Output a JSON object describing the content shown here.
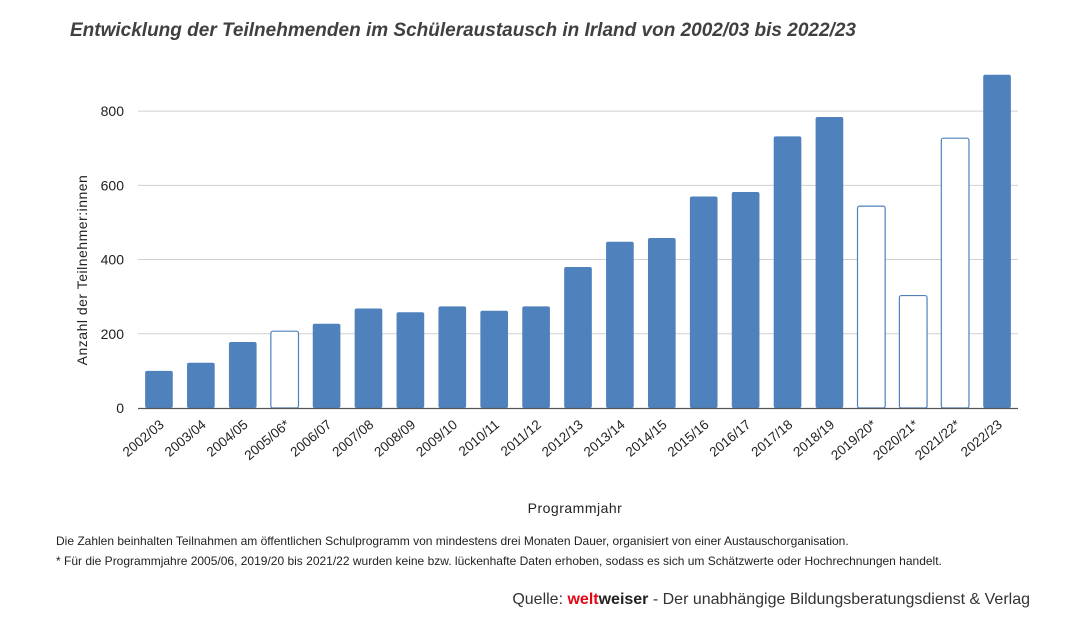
{
  "chart_data": {
    "type": "bar",
    "title": "Entwicklung der Teilnehmenden im Schüleraustausch in Irland von 2002/03 bis 2022/23",
    "xlabel": "Programmjahr",
    "ylabel": "Anzahl der Teilnehmer:innen",
    "ylim": [
      0,
      900
    ],
    "yticks": [
      0,
      200,
      400,
      600,
      800
    ],
    "grid": true,
    "categories": [
      "2002/03",
      "2003/04",
      "2004/05",
      "2005/06*",
      "2006/07",
      "2007/08",
      "2008/09",
      "2009/10",
      "2010/11",
      "2011/12",
      "2012/13",
      "2013/14",
      "2014/15",
      "2015/16",
      "2016/17",
      "2017/18",
      "2018/19",
      "2019/20*",
      "2020/21*",
      "2021/22*",
      "2022/23"
    ],
    "values": [
      100,
      122,
      178,
      207,
      227,
      268,
      258,
      274,
      262,
      274,
      380,
      448,
      458,
      570,
      582,
      732,
      784,
      544,
      303,
      727,
      898
    ],
    "estimated": [
      false,
      false,
      false,
      true,
      false,
      false,
      false,
      false,
      false,
      false,
      false,
      false,
      false,
      false,
      false,
      false,
      false,
      true,
      true,
      true,
      false
    ],
    "colors": {
      "bar": "#4f81bd",
      "estimated_fill": "#ffffff",
      "estimated_stroke": "#4f81bd",
      "grid": "#d0d0d0",
      "axis": "#555555"
    }
  },
  "footnotes": {
    "line1": "Die Zahlen beinhalten Teilnahmen am öffentlichen Schulprogramm von mindestens drei Monaten Dauer, organisiert von einer Austauschorganisation.",
    "line2": "* Für die Programmjahre 2005/06, 2019/20 bis 2021/22 wurden keine bzw. lückenhafte Daten erhoben, sodass es sich um Schätzwerte oder Hochrechnungen handelt."
  },
  "source": {
    "prefix": "Quelle: ",
    "brand_part1": "welt",
    "brand_part2": "weiser",
    "suffix": " - Der unabhängige Bildungsberatungsdienst & Verlag"
  }
}
